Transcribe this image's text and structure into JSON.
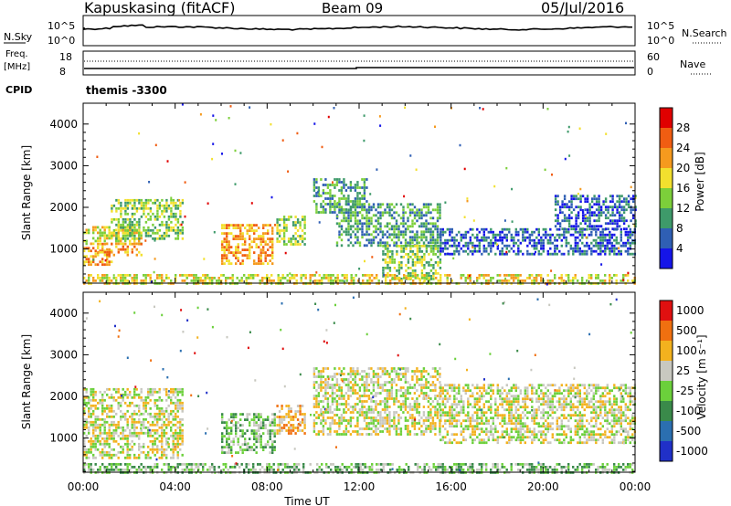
{
  "header": {
    "station": "Kapuskasing (fitACF)",
    "beam": "Beam 09",
    "date": "05/Jul/2016"
  },
  "noise_panel": {
    "left_label": "N.Sky",
    "left_ticks": [
      "10^5",
      "10^0"
    ],
    "right_ticks": [
      "10^5",
      "10^0"
    ],
    "right_label": "N.Search"
  },
  "freq_panel": {
    "label_line1": "Freq.",
    "label_line2": "[MHz]",
    "left_ticks": [
      "18",
      "8"
    ],
    "right_ticks": [
      "60",
      "0"
    ],
    "right_label": "Nave",
    "cpid_label": "CPID",
    "cpid_value": "themis -3300"
  },
  "chart_data": [
    {
      "type": "heatmap",
      "panel": "power",
      "ylabel": "Slant Range [km]",
      "ylim": [
        180,
        4500
      ],
      "y_ticks": [
        "1000",
        "2000",
        "3000",
        "4000"
      ],
      "xlim_hours": [
        0,
        24
      ],
      "colorbar": {
        "label": "Power [dB]",
        "ticks": [
          "4",
          "8",
          "12",
          "16",
          "20",
          "24",
          "28"
        ],
        "colors": [
          "#1515e8",
          "#2f5fb4",
          "#3e9a6a",
          "#7ccf3a",
          "#f2e02e",
          "#f59a1e",
          "#f05d12",
          "#e00000"
        ]
      },
      "echo_regions": [
        {
          "t0": 0.0,
          "t1": 1.2,
          "r0": 600,
          "r1": 1050,
          "level": 5
        },
        {
          "t0": 0.0,
          "t1": 2.5,
          "r0": 1150,
          "r1": 1550,
          "level": 4
        },
        {
          "t0": 1.2,
          "t1": 4.3,
          "r0": 1250,
          "r1": 2200,
          "level": 3
        },
        {
          "t0": 0.6,
          "t1": 2.5,
          "r0": 850,
          "r1": 1150,
          "level": 5
        },
        {
          "t0": 6.0,
          "t1": 8.2,
          "r0": 650,
          "r1": 1600,
          "level": 5
        },
        {
          "t0": 8.4,
          "t1": 9.6,
          "r0": 1100,
          "r1": 1800,
          "level": 3
        },
        {
          "t0": 10.0,
          "t1": 12.3,
          "r0": 1900,
          "r1": 2700,
          "level": 2
        },
        {
          "t0": 11.0,
          "t1": 15.5,
          "r0": 1100,
          "r1": 2100,
          "level": 2
        },
        {
          "t0": 13.0,
          "t1": 15.5,
          "r0": 250,
          "r1": 1100,
          "level": 3
        },
        {
          "t0": 15.5,
          "t1": 24.0,
          "r0": 900,
          "r1": 1500,
          "level": 1
        },
        {
          "t0": 20.5,
          "t1": 24.0,
          "r0": 1500,
          "r1": 2300,
          "level": 1
        },
        {
          "t0": 0.0,
          "t1": 24.0,
          "r0": 180,
          "r1": 400,
          "level": 4
        }
      ]
    },
    {
      "type": "heatmap",
      "panel": "velocity",
      "ylabel": "Slant Range [km]",
      "ylim": [
        180,
        4500
      ],
      "y_ticks": [
        "1000",
        "2000",
        "3000",
        "4000"
      ],
      "xlim_hours": [
        0,
        24
      ],
      "colorbar": {
        "label": "Velocity [m s⁻¹]",
        "ticks": [
          "1000",
          "500",
          "100",
          "25",
          "-25",
          "-100",
          "-500",
          "-1000"
        ],
        "colors": [
          "#2030c8",
          "#2b6fb0",
          "#3a8a4a",
          "#6bd03b",
          "#c8c8c0",
          "#f3b21e",
          "#f07010",
          "#e01010"
        ]
      },
      "echo_regions": [
        {
          "t0": 0.0,
          "t1": 4.3,
          "r0": 500,
          "r1": 2200,
          "level": 4
        },
        {
          "t0": 6.0,
          "t1": 8.3,
          "r0": 650,
          "r1": 1600,
          "level": 3
        },
        {
          "t0": 8.4,
          "t1": 9.6,
          "r0": 1100,
          "r1": 1800,
          "level": 5
        },
        {
          "t0": 10.0,
          "t1": 15.5,
          "r0": 1100,
          "r1": 2700,
          "level": 4
        },
        {
          "t0": 15.5,
          "t1": 24.0,
          "r0": 900,
          "r1": 2300,
          "level": 4
        },
        {
          "t0": 0.0,
          "t1": 24.0,
          "r0": 180,
          "r1": 400,
          "level": 3
        }
      ]
    }
  ],
  "x_axis": {
    "ticks": [
      "00:00",
      "04:00",
      "08:00",
      "12:00",
      "16:00",
      "20:00",
      "00:00"
    ],
    "label": "Time UT"
  },
  "colors": {
    "frame": "#000000",
    "background": "#ffffff"
  }
}
